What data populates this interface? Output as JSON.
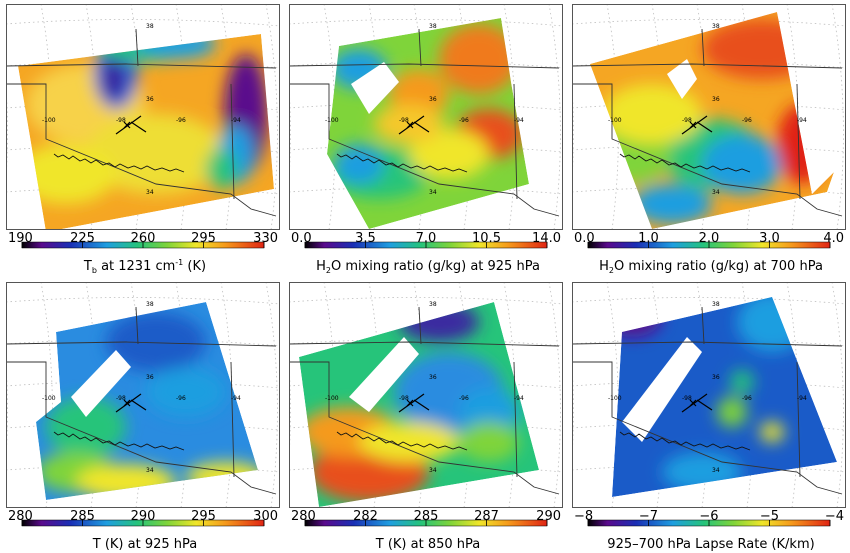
{
  "panels": [
    {
      "id": "tb",
      "title_main": "T",
      "title_sub": "b",
      "title_rest": " at 1231 cm",
      "title_sup": "-1",
      "title_end": " (K)",
      "ticks": [
        "190",
        "225",
        "260",
        "295",
        "330"
      ],
      "colorscale": "rainbow_purple",
      "map_labels": [
        "38",
        "36",
        "-100",
        "-98",
        "-96",
        "-94",
        "34"
      ]
    },
    {
      "id": "h2o925",
      "title_pre": "H",
      "title_sub": "2",
      "title_rest": "O mixing ratio (g/kg) at 925 hPa",
      "ticks": [
        "0.0",
        "3.5",
        "7.0",
        "10.5",
        "14.0"
      ],
      "colorscale": "rainbow_purple",
      "map_labels": [
        "38",
        "36",
        "-100",
        "-98",
        "-96",
        "-94",
        "34"
      ]
    },
    {
      "id": "h2o700",
      "title_pre": "H",
      "title_sub": "2",
      "title_rest": "O mixing ratio (g/kg) at 700 hPa",
      "ticks": [
        "0.0",
        "1.0",
        "2.0",
        "3.0",
        "4.0"
      ],
      "colorscale": "rainbow_purple",
      "map_labels": [
        "38",
        "36",
        "-100",
        "-98",
        "-96",
        "-94",
        "34"
      ]
    },
    {
      "id": "t925",
      "title": "T (K) at 925 hPa",
      "ticks": [
        "280",
        "285",
        "290",
        "295",
        "300"
      ],
      "colorscale": "rainbow_purple",
      "map_labels": [
        "38",
        "36",
        "-100",
        "-98",
        "-96",
        "-94",
        "34"
      ]
    },
    {
      "id": "t850",
      "title": "T (K) at 850 hPa",
      "ticks": [
        "280",
        "282",
        "285",
        "287",
        "290"
      ],
      "colorscale": "rainbow_purple",
      "map_labels": [
        "38",
        "36",
        "-100",
        "-98",
        "-96",
        "-94",
        "34"
      ]
    },
    {
      "id": "lapse",
      "title": "925–700 hPa Lapse Rate (K/km)",
      "ticks": [
        "−8",
        "−7",
        "−6",
        "−5",
        "−4"
      ],
      "colorscale": "rainbow_purple",
      "map_labels": [
        "38",
        "36",
        "-100",
        "-98",
        "-96",
        "-94",
        "34"
      ]
    }
  ],
  "chart_data": [
    {
      "type": "heatmap",
      "title": "Tb at 1231 cm-1 (K)",
      "colorbar": {
        "min": 190,
        "max": 330,
        "ticks": [
          190,
          225,
          260,
          295,
          330
        ]
      },
      "dominant_value": 300,
      "features": [
        {
          "description": "cold cloud",
          "value": 215
        },
        {
          "description": "cold cloud",
          "value": 200
        }
      ]
    },
    {
      "type": "heatmap",
      "title": "H2O mixing ratio (g/kg) at 925 hPa",
      "colorbar": {
        "min": 0.0,
        "max": 14.0,
        "ticks": [
          0.0,
          3.5,
          7.0,
          10.5,
          14.0
        ]
      },
      "range_observed": [
        5.0,
        13.0
      ]
    },
    {
      "type": "heatmap",
      "title": "H2O mixing ratio (g/kg) at 700 hPa",
      "colorbar": {
        "min": 0.0,
        "max": 4.0,
        "ticks": [
          0.0,
          1.0,
          2.0,
          3.0,
          4.0
        ]
      },
      "range_observed": [
        1.5,
        4.0
      ]
    },
    {
      "type": "heatmap",
      "title": "T (K) at 925 hPa",
      "colorbar": {
        "min": 280,
        "max": 300,
        "ticks": [
          280,
          285,
          290,
          295,
          300
        ]
      },
      "range_observed": [
        287,
        299
      ]
    },
    {
      "type": "heatmap",
      "title": "T (K) at 850 hPa",
      "colorbar": {
        "min": 280,
        "max": 290,
        "ticks": [
          280,
          282,
          285,
          287,
          290
        ]
      },
      "range_observed": [
        283,
        290
      ]
    },
    {
      "type": "heatmap",
      "title": "925-700 hPa Lapse Rate (K/km)",
      "colorbar": {
        "min": -8,
        "max": -4,
        "ticks": [
          -8,
          -7,
          -6,
          -5,
          -4
        ]
      },
      "range_observed": [
        -7.5,
        -4.0
      ]
    }
  ]
}
